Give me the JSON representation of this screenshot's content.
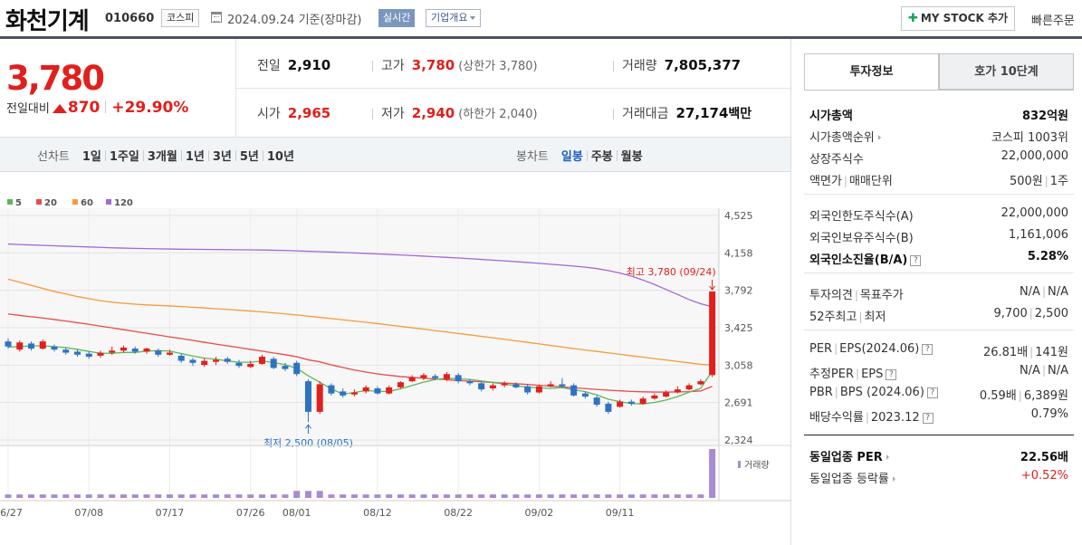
{
  "header": {
    "stock_name": "화천기계",
    "stock_code": "010660",
    "market": "코스피",
    "date_text": "2024.09.24 기준(장마감)",
    "realtime_label": "실시간",
    "overview_label": "기업개요",
    "my_stock_label": "MY STOCK 추가",
    "quick_order_label": "빠른주문"
  },
  "summary": {
    "price": "3,780",
    "change_label": "전일대비",
    "change_value": "870",
    "change_rate": "+29.90%",
    "prev_close": {
      "label": "전일",
      "value": "2,910"
    },
    "high": {
      "label": "고가",
      "value": "3,780",
      "sub": "(상한가 3,780)"
    },
    "volume": {
      "label": "거래량",
      "value": "7,805,377"
    },
    "open": {
      "label": "시가",
      "value": "2,965"
    },
    "low": {
      "label": "저가",
      "value": "2,940",
      "sub": "(하한가 2,040)"
    },
    "trade_value": {
      "label": "거래대금",
      "value": "27,174",
      "unit": "백만"
    }
  },
  "period_tabs": {
    "line_label": "선차트",
    "line_options": [
      "1일",
      "1주일",
      "3개월",
      "1년",
      "3년",
      "5년",
      "10년"
    ],
    "candle_label": "봉차트",
    "candle_options": [
      "일봉",
      "주봉",
      "월봉"
    ],
    "candle_active": "일봉"
  },
  "chart_data": {
    "type": "candlestick",
    "legend": [
      "5",
      "20",
      "60",
      "120"
    ],
    "ma_colors": {
      "5": "#5cb85c",
      "20": "#e94b4b",
      "60": "#f59a3b",
      "120": "#a16ad6"
    },
    "up_color": "#e0201d",
    "down_color": "#2f72c4",
    "y_ticks": [
      "4,525",
      "4,158",
      "3,792",
      "3,425",
      "3,058",
      "2,691",
      "2,324"
    ],
    "y_range": [
      2324,
      4525
    ],
    "x_labels": [
      "06/27",
      "07/08",
      "07/17",
      "07/26",
      "08/01",
      "08/12",
      "08/22",
      "09/02",
      "09/11"
    ],
    "x_label_index": [
      0,
      7,
      14,
      21,
      25,
      32,
      39,
      46,
      53
    ],
    "volume_label": "거래량",
    "annotations": {
      "high": "최고 3,780 (09/24)",
      "low": "최저 2,500 (08/05)"
    },
    "candles": [
      {
        "o": 3290,
        "c": 3240,
        "h": 3320,
        "l": 3220,
        "v": 1
      },
      {
        "o": 3210,
        "c": 3280,
        "h": 3300,
        "l": 3190,
        "v": 1
      },
      {
        "o": 3270,
        "c": 3220,
        "h": 3290,
        "l": 3200,
        "v": 1
      },
      {
        "o": 3220,
        "c": 3290,
        "h": 3310,
        "l": 3210,
        "v": 1
      },
      {
        "o": 3240,
        "c": 3210,
        "h": 3260,
        "l": 3190,
        "v": 1
      },
      {
        "o": 3210,
        "c": 3180,
        "h": 3230,
        "l": 3160,
        "v": 1
      },
      {
        "o": 3190,
        "c": 3160,
        "h": 3210,
        "l": 3140,
        "v": 1
      },
      {
        "o": 3170,
        "c": 3140,
        "h": 3190,
        "l": 3120,
        "v": 1
      },
      {
        "o": 3150,
        "c": 3180,
        "h": 3200,
        "l": 3130,
        "v": 1
      },
      {
        "o": 3180,
        "c": 3200,
        "h": 3240,
        "l": 3160,
        "v": 1
      },
      {
        "o": 3200,
        "c": 3230,
        "h": 3250,
        "l": 3180,
        "v": 1
      },
      {
        "o": 3220,
        "c": 3190,
        "h": 3240,
        "l": 3170,
        "v": 1
      },
      {
        "o": 3190,
        "c": 3220,
        "h": 3230,
        "l": 3170,
        "v": 1
      },
      {
        "o": 3200,
        "c": 3160,
        "h": 3220,
        "l": 3140,
        "v": 1
      },
      {
        "o": 3160,
        "c": 3180,
        "h": 3210,
        "l": 3150,
        "v": 1
      },
      {
        "o": 3150,
        "c": 3100,
        "h": 3170,
        "l": 3080,
        "v": 1
      },
      {
        "o": 3110,
        "c": 3080,
        "h": 3130,
        "l": 3050,
        "v": 1
      },
      {
        "o": 3060,
        "c": 3100,
        "h": 3130,
        "l": 3040,
        "v": 1
      },
      {
        "o": 3090,
        "c": 3110,
        "h": 3140,
        "l": 3060,
        "v": 1
      },
      {
        "o": 3120,
        "c": 3090,
        "h": 3140,
        "l": 3070,
        "v": 1
      },
      {
        "o": 3080,
        "c": 3050,
        "h": 3110,
        "l": 3030,
        "v": 1
      },
      {
        "o": 3040,
        "c": 3070,
        "h": 3100,
        "l": 3030,
        "v": 1
      },
      {
        "o": 3070,
        "c": 3140,
        "h": 3160,
        "l": 3060,
        "v": 1
      },
      {
        "o": 3120,
        "c": 3030,
        "h": 3140,
        "l": 3020,
        "v": 1
      },
      {
        "o": 3050,
        "c": 3020,
        "h": 3080,
        "l": 3000,
        "v": 1
      },
      {
        "o": 3080,
        "c": 2970,
        "h": 3100,
        "l": 2950,
        "v": 2
      },
      {
        "o": 2900,
        "c": 2600,
        "h": 2920,
        "l": 2500,
        "v": 2
      },
      {
        "o": 2600,
        "c": 2870,
        "h": 2900,
        "l": 2580,
        "v": 2
      },
      {
        "o": 2860,
        "c": 2780,
        "h": 2880,
        "l": 2760,
        "v": 1
      },
      {
        "o": 2800,
        "c": 2760,
        "h": 2830,
        "l": 2740,
        "v": 1
      },
      {
        "o": 2770,
        "c": 2790,
        "h": 2820,
        "l": 2750,
        "v": 1
      },
      {
        "o": 2800,
        "c": 2840,
        "h": 2860,
        "l": 2780,
        "v": 1
      },
      {
        "o": 2830,
        "c": 2780,
        "h": 2850,
        "l": 2770,
        "v": 1
      },
      {
        "o": 2780,
        "c": 2840,
        "h": 2860,
        "l": 2770,
        "v": 1
      },
      {
        "o": 2840,
        "c": 2890,
        "h": 2900,
        "l": 2830,
        "v": 1
      },
      {
        "o": 2900,
        "c": 2940,
        "h": 2960,
        "l": 2890,
        "v": 1
      },
      {
        "o": 2930,
        "c": 2960,
        "h": 2980,
        "l": 2910,
        "v": 1
      },
      {
        "o": 2950,
        "c": 2930,
        "h": 2970,
        "l": 2910,
        "v": 1
      },
      {
        "o": 2920,
        "c": 2970,
        "h": 2990,
        "l": 2900,
        "v": 1
      },
      {
        "o": 2960,
        "c": 2900,
        "h": 2980,
        "l": 2880,
        "v": 1
      },
      {
        "o": 2900,
        "c": 2880,
        "h": 2920,
        "l": 2860,
        "v": 1
      },
      {
        "o": 2880,
        "c": 2820,
        "h": 2900,
        "l": 2800,
        "v": 1
      },
      {
        "o": 2830,
        "c": 2860,
        "h": 2880,
        "l": 2810,
        "v": 1
      },
      {
        "o": 2860,
        "c": 2880,
        "h": 2900,
        "l": 2840,
        "v": 1
      },
      {
        "o": 2870,
        "c": 2840,
        "h": 2890,
        "l": 2830,
        "v": 1
      },
      {
        "o": 2850,
        "c": 2790,
        "h": 2870,
        "l": 2770,
        "v": 1
      },
      {
        "o": 2790,
        "c": 2850,
        "h": 2870,
        "l": 2780,
        "v": 1
      },
      {
        "o": 2850,
        "c": 2870,
        "h": 2900,
        "l": 2840,
        "v": 1
      },
      {
        "o": 2870,
        "c": 2850,
        "h": 2930,
        "l": 2830,
        "v": 1
      },
      {
        "o": 2860,
        "c": 2760,
        "h": 2880,
        "l": 2750,
        "v": 1
      },
      {
        "o": 2780,
        "c": 2750,
        "h": 2800,
        "l": 2730,
        "v": 1
      },
      {
        "o": 2740,
        "c": 2670,
        "h": 2760,
        "l": 2650,
        "v": 1
      },
      {
        "o": 2680,
        "c": 2600,
        "h": 2700,
        "l": 2580,
        "v": 1
      },
      {
        "o": 2650,
        "c": 2700,
        "h": 2720,
        "l": 2640,
        "v": 1
      },
      {
        "o": 2700,
        "c": 2680,
        "h": 2720,
        "l": 2660,
        "v": 1
      },
      {
        "o": 2680,
        "c": 2730,
        "h": 2750,
        "l": 2670,
        "v": 1
      },
      {
        "o": 2730,
        "c": 2760,
        "h": 2780,
        "l": 2720,
        "v": 1
      },
      {
        "o": 2750,
        "c": 2790,
        "h": 2810,
        "l": 2740,
        "v": 1
      },
      {
        "o": 2790,
        "c": 2820,
        "h": 2850,
        "l": 2780,
        "v": 1
      },
      {
        "o": 2820,
        "c": 2860,
        "h": 2880,
        "l": 2810,
        "v": 1
      },
      {
        "o": 2870,
        "c": 2900,
        "h": 2920,
        "l": 2860,
        "v": 1
      },
      {
        "o": 2960,
        "c": 3780,
        "h": 3780,
        "l": 2940,
        "v": 14
      }
    ],
    "ma": {
      "5": [
        3235,
        3240,
        3246,
        3248,
        3239,
        3230,
        3212,
        3192,
        3174,
        3174,
        3182,
        3182,
        3196,
        3200,
        3196,
        3171,
        3147,
        3126,
        3116,
        3098,
        3086,
        3086,
        3098,
        3084,
        3062,
        3026,
        2954,
        2890,
        2824,
        2774,
        2789,
        2810,
        2801,
        2800,
        2826,
        2859,
        2891,
        2917,
        2929,
        2924,
        2917,
        2903,
        2888,
        2872,
        2854,
        2842,
        2834,
        2830,
        2838,
        2816,
        2798,
        2767,
        2723,
        2700,
        2680,
        2677,
        2692,
        2716,
        2750,
        2793,
        2830,
        3000
      ],
      "20": [
        3560,
        3545,
        3532,
        3520,
        3505,
        3490,
        3474,
        3458,
        3440,
        3423,
        3405,
        3388,
        3370,
        3352,
        3335,
        3318,
        3300,
        3282,
        3264,
        3247,
        3230,
        3212,
        3195,
        3177,
        3160,
        3140,
        3110,
        3090,
        3060,
        3035,
        3010,
        2990,
        2972,
        2958,
        2946,
        2937,
        2930,
        2922,
        2914,
        2906,
        2900,
        2894,
        2888,
        2882,
        2876,
        2868,
        2860,
        2852,
        2844,
        2836,
        2828,
        2820,
        2812,
        2806,
        2800,
        2796,
        2794,
        2794,
        2795,
        2798,
        2805,
        2850
      ],
      "60": [
        3900,
        3870,
        3840,
        3810,
        3780,
        3755,
        3730,
        3710,
        3690,
        3675,
        3664,
        3655,
        3648,
        3643,
        3638,
        3632,
        3625,
        3618,
        3611,
        3604,
        3596,
        3588,
        3580,
        3570,
        3560,
        3550,
        3538,
        3526,
        3514,
        3502,
        3490,
        3478,
        3465,
        3451,
        3438,
        3424,
        3410,
        3396,
        3382,
        3368,
        3354,
        3340,
        3326,
        3311,
        3296,
        3281,
        3266,
        3251,
        3236,
        3221,
        3206,
        3192,
        3178,
        3164,
        3150,
        3136,
        3122,
        3108,
        3094,
        3080,
        3066,
        3058
      ],
      "120": [
        4245,
        4240,
        4236,
        4232,
        4228,
        4224,
        4220,
        4216,
        4212,
        4208,
        4205,
        4202,
        4200,
        4198,
        4196,
        4194,
        4193,
        4192,
        4191,
        4190,
        4189,
        4188,
        4186,
        4184,
        4182,
        4178,
        4174,
        4170,
        4166,
        4162,
        4158,
        4153,
        4148,
        4143,
        4138,
        4132,
        4126,
        4120,
        4114,
        4108,
        4101,
        4094,
        4087,
        4080,
        4072,
        4064,
        4056,
        4047,
        4038,
        4029,
        4018,
        4004,
        3985,
        3960,
        3930,
        3892,
        3848,
        3800,
        3750,
        3700,
        3660,
        3630
      ]
    }
  },
  "right_panel": {
    "tab_info": "투자정보",
    "tab_hoga": "호가 10단계",
    "rows": {
      "mcap": {
        "label": "시가총액",
        "value": "832억원"
      },
      "mcap_rank": {
        "label": "시가총액순위",
        "value": "코스피 1003위"
      },
      "shares": {
        "label": "상장주식수",
        "value": "22,000,000"
      },
      "par_label": "액면가",
      "unit_label": "매매단위",
      "par_value": "500원",
      "unit_value": "1주",
      "foreign_limit": {
        "label": "외국인한도주식수(A)",
        "value": "22,000,000"
      },
      "foreign_hold": {
        "label": "외국인보유주식수(B)",
        "value": "1,161,006"
      },
      "foreign_rate": {
        "label": "외국인소진율(B/A)",
        "value": "5.28%"
      },
      "opinion_label": "투자의견",
      "target_label": "목표주가",
      "opinion_value": "N/A",
      "target_value": "N/A",
      "w52_label": "52주최고",
      "w52_low_label": "최저",
      "w52_high": "9,700",
      "w52_low": "2,500",
      "per_label": "PER",
      "eps_label": "EPS(2024.06)",
      "per_value": "26.81배",
      "eps_value": "141원",
      "eper_label": "추정PER",
      "eeps_label": "EPS",
      "eper_value": "N/A",
      "eeps_value": "N/A",
      "pbr_label": "PBR",
      "bps_label": "BPS (2024.06)",
      "pbr_value": "0.59배",
      "bps_value": "6,389원",
      "div_label": "배당수익률",
      "div_date": "2023.12",
      "div_value": "0.79%",
      "sector_per": {
        "label": "동일업종 PER",
        "value": "22.56배"
      },
      "sector_rate": {
        "label": "동일업종 등락률",
        "value": "+0.52%"
      }
    }
  }
}
